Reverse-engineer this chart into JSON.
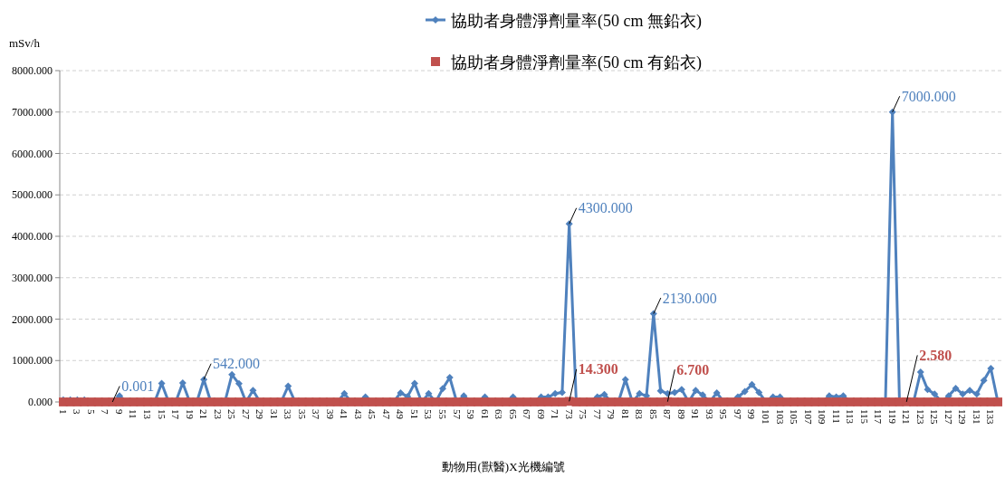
{
  "chart_data": {
    "type": "line",
    "ylabel": "mSv/h",
    "xlabel": "動物用(獸醫)X光機編號",
    "categories": [
      "1",
      null,
      "3",
      null,
      "5",
      null,
      "7",
      null,
      "9",
      null,
      "11",
      null,
      "13",
      null,
      "15",
      null,
      "17",
      null,
      "19",
      null,
      "21",
      null,
      "23",
      null,
      "25",
      null,
      "27",
      null,
      "29",
      null,
      "31",
      null,
      "33",
      null,
      "35",
      null,
      "37",
      null,
      "39",
      null,
      "41",
      null,
      "43",
      null,
      "45",
      null,
      "47",
      null,
      "49",
      null,
      "51",
      null,
      "53",
      null,
      "55",
      null,
      "57",
      null,
      "59",
      null,
      "61",
      null,
      "63",
      null,
      "65",
      null,
      "67",
      null,
      "69",
      null,
      "71",
      null,
      "73",
      null,
      "75",
      null,
      "77",
      null,
      "79",
      null,
      "81",
      null,
      "83",
      null,
      "85",
      null,
      "87",
      null,
      "89",
      null,
      "91",
      null,
      "93",
      null,
      "95",
      null,
      "97",
      null,
      "99",
      null,
      "101",
      null,
      "103",
      null,
      "105",
      null,
      "107",
      null,
      "109",
      null,
      "111",
      null,
      "113",
      null,
      "115",
      null,
      "117",
      null,
      "119",
      null,
      "121",
      null,
      "123",
      null,
      "125",
      null,
      "127",
      null,
      "129",
      null,
      "131",
      null,
      "133",
      null
    ],
    "ylim": [
      0,
      8000
    ],
    "yticks": [
      {
        "value": 0,
        "label": "0.000"
      },
      {
        "value": 1000,
        "label": "1000.000"
      },
      {
        "value": 2000,
        "label": "2000.000"
      },
      {
        "value": 3000,
        "label": "3000.000"
      },
      {
        "value": 4000,
        "label": "4000.000"
      },
      {
        "value": 5000,
        "label": "5000.000"
      },
      {
        "value": 6000,
        "label": "6000.000"
      },
      {
        "value": 7000,
        "label": "7000.000"
      },
      {
        "value": 8000,
        "label": "8000.000"
      }
    ],
    "grid": "y",
    "legend": "top",
    "series": [
      {
        "name": "協助者身體淨劑量率(50 cm 無鉛衣)",
        "color": "#4f81bd",
        "marker": "diamond",
        "values": [
          50,
          50,
          50,
          50,
          0,
          0,
          0,
          0.001,
          150,
          0,
          0,
          0,
          0,
          0,
          450,
          0,
          0,
          460,
          0,
          0,
          542,
          0,
          0,
          0,
          660,
          440,
          0,
          280,
          0,
          0,
          0,
          0,
          380,
          0,
          0,
          0,
          0,
          0,
          0,
          0,
          200,
          0,
          0,
          120,
          0,
          0,
          0,
          0,
          220,
          130,
          450,
          0,
          200,
          0,
          320,
          590,
          0,
          150,
          0,
          0,
          120,
          0,
          0,
          0,
          120,
          0,
          0,
          0,
          120,
          120,
          200,
          230,
          4300,
          0,
          0,
          0,
          120,
          180,
          0,
          0,
          540,
          0,
          200,
          150,
          2130,
          270,
          200,
          230,
          300,
          0,
          280,
          170,
          0,
          220,
          0,
          0,
          120,
          250,
          420,
          230,
          0,
          120,
          120,
          0,
          0,
          0,
          0,
          0,
          0,
          150,
          120,
          150,
          0,
          0,
          0,
          0,
          0,
          0,
          7000,
          0,
          0,
          0,
          720,
          300,
          190,
          0,
          150,
          330,
          190,
          280,
          190,
          520,
          810,
          0
        ],
        "value_labels": [
          null,
          null,
          null,
          null,
          null,
          null,
          null,
          "0.001",
          null,
          null,
          null,
          null,
          null,
          null,
          null,
          null,
          null,
          null,
          null,
          null,
          "542.000",
          null,
          null,
          null,
          null,
          null,
          null,
          null,
          null,
          null,
          null,
          null,
          null,
          null,
          null,
          null,
          null,
          null,
          null,
          null,
          null,
          null,
          null,
          null,
          null,
          null,
          null,
          null,
          null,
          null,
          null,
          null,
          null,
          null,
          null,
          null,
          null,
          null,
          null,
          null,
          null,
          null,
          null,
          null,
          null,
          null,
          null,
          null,
          null,
          null,
          null,
          null,
          "4300.000",
          null,
          null,
          null,
          null,
          null,
          null,
          null,
          null,
          null,
          null,
          null,
          "2130.000",
          null,
          null,
          null,
          null,
          null,
          null,
          null,
          null,
          null,
          null,
          null,
          null,
          null,
          null,
          null,
          null,
          null,
          null,
          null,
          null,
          null,
          null,
          null,
          null,
          null,
          null,
          null,
          null,
          null,
          null,
          null,
          null,
          null,
          "7000.000",
          null,
          null,
          null,
          null,
          null,
          null,
          null,
          null,
          null,
          null,
          null,
          null,
          null,
          null,
          null
        ]
      },
      {
        "name": "協助者身體淨劑量率(50 cm 有鉛衣)",
        "color": "#c0504d",
        "type": "scatter",
        "marker": "square",
        "values": [
          0,
          0,
          0,
          0,
          0,
          0,
          0,
          0,
          0,
          0,
          0,
          0,
          0,
          0,
          0,
          0,
          0,
          0,
          0,
          0,
          0,
          0,
          0,
          0,
          0,
          0,
          0,
          0,
          0,
          0,
          0,
          0,
          0,
          0,
          0,
          0,
          0,
          0,
          0,
          0,
          0,
          0,
          0,
          0,
          0,
          0,
          0,
          0,
          0,
          0,
          0,
          0,
          0,
          0,
          0,
          0,
          0,
          0,
          0,
          0,
          0,
          0,
          0,
          0,
          0,
          0,
          0,
          0,
          0,
          0,
          0,
          0,
          14.3,
          0,
          0,
          0,
          0,
          0,
          0,
          0,
          0,
          0,
          0,
          0,
          0,
          0,
          6.7,
          0,
          0,
          0,
          0,
          0,
          0,
          0,
          0,
          0,
          0,
          0,
          0,
          0,
          0,
          0,
          0,
          0,
          0,
          0,
          0,
          0,
          0,
          0,
          0,
          0,
          0,
          0,
          0,
          0,
          0,
          0,
          0,
          0,
          2.58,
          0,
          0,
          0,
          0,
          0,
          0,
          0,
          0,
          0,
          0,
          0,
          0,
          0
        ],
        "value_labels": [
          null,
          null,
          null,
          null,
          null,
          null,
          null,
          null,
          null,
          null,
          null,
          null,
          null,
          null,
          null,
          null,
          null,
          null,
          null,
          null,
          null,
          null,
          null,
          null,
          null,
          null,
          null,
          null,
          null,
          null,
          null,
          null,
          null,
          null,
          null,
          null,
          null,
          null,
          null,
          null,
          null,
          null,
          null,
          null,
          null,
          null,
          null,
          null,
          null,
          null,
          null,
          null,
          null,
          null,
          null,
          null,
          null,
          null,
          null,
          null,
          null,
          null,
          null,
          null,
          null,
          null,
          null,
          null,
          null,
          null,
          null,
          null,
          "14.300",
          null,
          null,
          null,
          null,
          null,
          null,
          null,
          null,
          null,
          null,
          null,
          null,
          null,
          "6.700",
          null,
          null,
          null,
          null,
          null,
          null,
          null,
          null,
          null,
          null,
          null,
          null,
          null,
          null,
          null,
          null,
          null,
          null,
          null,
          null,
          null,
          null,
          null,
          null,
          null,
          null,
          null,
          null,
          null,
          null,
          null,
          null,
          null,
          "2.580",
          null,
          null,
          null,
          null,
          null,
          null,
          null,
          null,
          null,
          null,
          null,
          null,
          null
        ]
      }
    ]
  }
}
